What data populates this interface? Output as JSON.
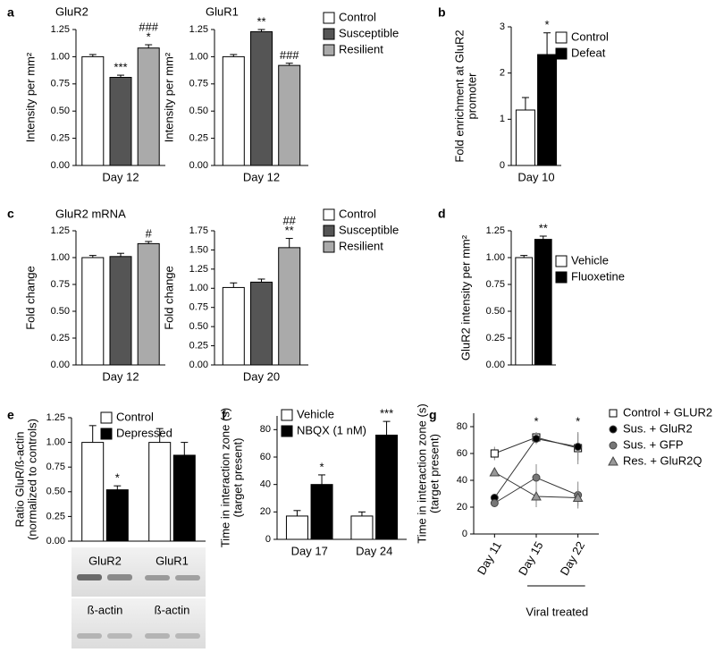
{
  "chart_data": [
    {
      "type": "bar",
      "panel": "a",
      "title": "GluR2",
      "categories": [
        "Day 12"
      ],
      "ylabel": "Intensity per mm²",
      "ylim": [
        0,
        1.25
      ],
      "yticks": [
        {
          "value": 0,
          "label": "0.00"
        },
        {
          "value": 0.25,
          "label": "0.25"
        },
        {
          "value": 0.5,
          "label": "0.50"
        },
        {
          "value": 0.75,
          "label": "0.75"
        },
        {
          "value": 1,
          "label": "1.00"
        },
        {
          "value": 1.25,
          "label": "1.25"
        }
      ],
      "series": [
        {
          "color": "#ffffff",
          "values": [
            1.0
          ],
          "errors": [
            0.02
          ]
        },
        {
          "color": "#555555",
          "values": [
            0.81
          ],
          "errors": [
            0.02
          ],
          "annotations": [
            [
              "***"
            ]
          ]
        },
        {
          "color": "#aaaaaa",
          "values": [
            1.08
          ],
          "errors": [
            0.03
          ],
          "annotations": [
            [
              "###",
              "*"
            ]
          ]
        }
      ]
    },
    {
      "type": "bar",
      "title": "GluR1",
      "categories": [
        "Day 12"
      ],
      "ylabel": "Intensity per mm²",
      "ylim": [
        0,
        1.25
      ],
      "yticks": [
        {
          "value": 0,
          "label": "0.00"
        },
        {
          "value": 0.25,
          "label": "0.25"
        },
        {
          "value": 0.5,
          "label": "0.50"
        },
        {
          "value": 0.75,
          "label": "0.75"
        },
        {
          "value": 1,
          "label": "1.00"
        },
        {
          "value": 1.25,
          "label": "1.25"
        }
      ],
      "series": [
        {
          "name": "Control",
          "color": "#ffffff",
          "values": [
            1.0
          ],
          "errors": [
            0.02
          ]
        },
        {
          "name": "Susceptible",
          "color": "#555555",
          "values": [
            1.23
          ],
          "errors": [
            0.02
          ],
          "annotations": [
            [
              "**"
            ]
          ]
        },
        {
          "name": "Resilient",
          "color": "#aaaaaa",
          "values": [
            0.92
          ],
          "errors": [
            0.02
          ],
          "annotations": [
            [
              "###"
            ]
          ]
        }
      ]
    },
    {
      "type": "bar",
      "panel": "b",
      "categories": [
        "Day 10"
      ],
      "ylabel": [
        "Fold enrichment at GluR2",
        "promoter"
      ],
      "ylim": [
        0,
        3
      ],
      "yticks": [
        0,
        1,
        2,
        3
      ],
      "series": [
        {
          "name": "Control",
          "color": "#ffffff",
          "values": [
            1.2
          ],
          "errors": [
            0.27
          ]
        },
        {
          "name": "Defeat",
          "color": "#000000",
          "values": [
            2.4
          ],
          "errors": [
            0.47
          ],
          "annotations": [
            [
              "*"
            ]
          ]
        }
      ]
    },
    {
      "type": "bar",
      "panel": "c",
      "title": "GluR2 mRNA",
      "categories": [
        "Day 12"
      ],
      "ylabel": "Fold change",
      "ylim": [
        0,
        1.25
      ],
      "yticks": [
        {
          "value": 0,
          "label": "0.00"
        },
        {
          "value": 0.25,
          "label": "0.25"
        },
        {
          "value": 0.5,
          "label": "0.50"
        },
        {
          "value": 0.75,
          "label": "0.75"
        },
        {
          "value": 1,
          "label": "1.00"
        },
        {
          "value": 1.25,
          "label": "1.25"
        }
      ],
      "series": [
        {
          "color": "#ffffff",
          "values": [
            1.0
          ],
          "errors": [
            0.02
          ]
        },
        {
          "color": "#555555",
          "values": [
            1.01
          ],
          "errors": [
            0.03
          ]
        },
        {
          "color": "#aaaaaa",
          "values": [
            1.13
          ],
          "errors": [
            0.02
          ],
          "annotations": [
            [
              "#"
            ]
          ]
        }
      ]
    },
    {
      "type": "bar",
      "categories": [
        "Day 20"
      ],
      "ylabel": "Fold change",
      "ylim": [
        0,
        1.75
      ],
      "yticks": [
        {
          "value": 0,
          "label": "0.00"
        },
        {
          "value": 0.25,
          "label": "0.25"
        },
        {
          "value": 0.5,
          "label": "0.50"
        },
        {
          "value": 0.75,
          "label": "0.75"
        },
        {
          "value": 1,
          "label": "1.00"
        },
        {
          "value": 1.25,
          "label": "1.25"
        },
        {
          "value": 1.5,
          "label": "1.50"
        },
        {
          "value": 1.75,
          "label": "1.75"
        }
      ],
      "series": [
        {
          "name": "Control",
          "color": "#ffffff",
          "values": [
            1.01
          ],
          "errors": [
            0.06
          ]
        },
        {
          "name": "Susceptible",
          "color": "#555555",
          "values": [
            1.08
          ],
          "errors": [
            0.04
          ]
        },
        {
          "name": "Resilient",
          "color": "#aaaaaa",
          "values": [
            1.53
          ],
          "errors": [
            0.12
          ],
          "annotations": [
            [
              "##",
              "**"
            ]
          ]
        }
      ]
    },
    {
      "type": "bar",
      "panel": "d",
      "categories": [
        null
      ],
      "ylabel": "GluR2 intensity per mm²",
      "ylim": [
        0,
        1.25
      ],
      "yticks": [
        {
          "value": 0,
          "label": "0.00"
        },
        {
          "value": 0.25,
          "label": "0.25"
        },
        {
          "value": 0.5,
          "label": "0.50"
        },
        {
          "value": 0.75,
          "label": "0.75"
        },
        {
          "value": 1,
          "label": "1.00"
        },
        {
          "value": 1.25,
          "label": "1.25"
        }
      ],
      "series": [
        {
          "name": "Vehicle",
          "color": "#ffffff",
          "values": [
            1.0
          ],
          "errors": [
            0.02
          ]
        },
        {
          "name": "Fluoxetine",
          "color": "#000000",
          "values": [
            1.17
          ],
          "errors": [
            0.03
          ],
          "annotations": [
            [
              "**"
            ]
          ]
        }
      ]
    },
    {
      "type": "bar",
      "panel": "e",
      "categories": [
        "GluR2",
        "GluR1"
      ],
      "loading_control": "ß-actin",
      "ylabel": [
        "Ratio GluR/ß-actin",
        "(normalized  to controls)"
      ],
      "ylim": [
        0,
        1.25
      ],
      "yticks": [
        {
          "value": 0,
          "label": "0.00"
        },
        {
          "value": 0.25,
          "label": "0.25"
        },
        {
          "value": 0.5,
          "label": "0.50"
        },
        {
          "value": 0.75,
          "label": "0.75"
        },
        {
          "value": 1,
          "label": "1.00"
        },
        {
          "value": 1.25,
          "label": "1.25"
        }
      ],
      "series": [
        {
          "name": "Control",
          "color": "#ffffff",
          "values": [
            1.0,
            1.0
          ],
          "errors": [
            0.17,
            0.14
          ]
        },
        {
          "name": "Depressed",
          "color": "#000000",
          "values": [
            0.52,
            0.87
          ],
          "errors": [
            0.04,
            0.13
          ],
          "annotations": [
            [
              "*"
            ],
            null
          ]
        }
      ]
    },
    {
      "type": "bar",
      "panel": "f",
      "categories": [
        "Day 17",
        "Day 24"
      ],
      "ylabel": [
        "Time in interaction zone (s)",
        "(target present)"
      ],
      "ylim": [
        0,
        90
      ],
      "yticks": [
        0,
        20,
        40,
        60,
        80
      ],
      "series": [
        {
          "name": "Vehicle",
          "color": "#ffffff",
          "values": [
            17,
            17
          ],
          "errors": [
            4,
            3
          ]
        },
        {
          "name": "NBQX (1 nM)",
          "color": "#000000",
          "values": [
            40,
            76
          ],
          "errors": [
            7,
            10
          ],
          "annotations": [
            [
              "*"
            ],
            [
              "***"
            ]
          ]
        }
      ]
    },
    {
      "type": "line",
      "panel": "g",
      "categories": [
        "Day 11",
        "Day 15",
        "Day 22"
      ],
      "group_label": "Viral treated",
      "ylabel": [
        "Time in interaction zone (s)",
        "(target present)"
      ],
      "ylim": [
        0,
        90
      ],
      "yticks": [
        0,
        20,
        40,
        60,
        80
      ],
      "annotations": [
        null,
        "*",
        "*"
      ],
      "series": [
        {
          "name": "Control + GLUR2",
          "marker": "square",
          "color": "#ffffff",
          "values": [
            60,
            72,
            64
          ],
          "errors": [
            5,
            4,
            12
          ]
        },
        {
          "name": "Sus. + GluR2",
          "marker": "circle",
          "color": "#000000",
          "values": [
            27,
            71,
            65
          ],
          "errors": [
            3,
            4,
            10
          ]
        },
        {
          "name": "Sus. + GFP",
          "marker": "circle",
          "color": "#777777",
          "values": [
            23,
            42,
            29
          ],
          "errors": [
            2,
            10,
            10
          ]
        },
        {
          "name": "Res. + GluR2Q",
          "marker": "triangle",
          "color": "#999999",
          "values": [
            46,
            28,
            27
          ],
          "errors": [
            3,
            8,
            6
          ]
        }
      ]
    }
  ]
}
